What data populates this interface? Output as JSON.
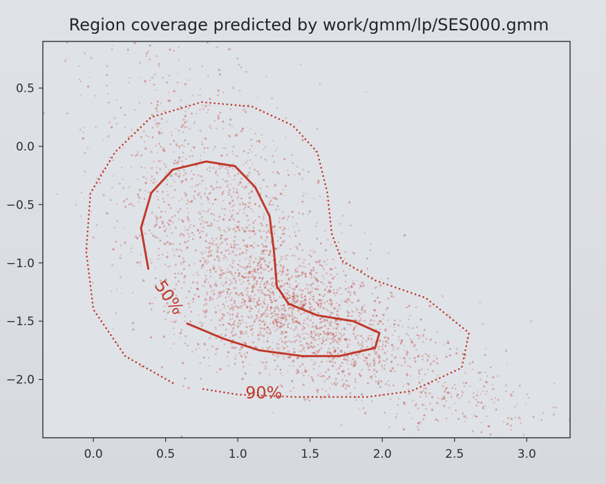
{
  "chart_data": {
    "type": "scatter",
    "title": "Region coverage predicted by work/gmm/lp/SES000.gmm",
    "xlabel": "",
    "ylabel": "",
    "xlim": [
      -0.35,
      3.3
    ],
    "ylim": [
      -2.5,
      0.9
    ],
    "xticks": [
      {
        "value": 0.0,
        "label": "0.0"
      },
      {
        "value": 0.5,
        "label": "0.5"
      },
      {
        "value": 1.0,
        "label": "1.0"
      },
      {
        "value": 1.5,
        "label": "1.5"
      },
      {
        "value": 2.0,
        "label": "2.0"
      },
      {
        "value": 2.5,
        "label": "2.5"
      },
      {
        "value": 3.0,
        "label": "3.0"
      }
    ],
    "yticks": [
      {
        "value": 0.5,
        "label": "0.5"
      },
      {
        "value": 0.0,
        "label": "0.0"
      },
      {
        "value": -0.5,
        "label": "−0.5"
      },
      {
        "value": -1.0,
        "label": "−1.0"
      },
      {
        "value": -1.5,
        "label": "−1.5"
      },
      {
        "value": -2.0,
        "label": "−2.0"
      }
    ],
    "grid": false,
    "scatter": {
      "color": "#c0392b",
      "approximate_point_count": 3000,
      "note_density_centers": [
        {
          "x": 0.9,
          "y": -0.8,
          "sx": 0.35,
          "sy": 0.45,
          "weight": 0.3
        },
        {
          "x": 1.3,
          "y": -1.35,
          "sx": 0.3,
          "sy": 0.25,
          "weight": 0.3
        },
        {
          "x": 1.8,
          "y": -1.75,
          "sx": 0.35,
          "sy": 0.2,
          "weight": 0.22
        },
        {
          "x": 0.55,
          "y": 0.1,
          "sx": 0.35,
          "sy": 0.45,
          "weight": 0.12
        },
        {
          "x": 2.5,
          "y": -2.2,
          "sx": 0.35,
          "sy": 0.15,
          "weight": 0.06
        }
      ]
    },
    "contours": [
      {
        "level_label": "50%",
        "style": "solid",
        "color": "#c0392b",
        "path": [
          [
            0.38,
            -1.05
          ],
          [
            0.33,
            -0.7
          ],
          [
            0.4,
            -0.4
          ],
          [
            0.55,
            -0.2
          ],
          [
            0.78,
            -0.13
          ],
          [
            0.98,
            -0.17
          ],
          [
            1.12,
            -0.35
          ],
          [
            1.22,
            -0.6
          ],
          [
            1.25,
            -0.9
          ],
          [
            1.27,
            -1.2
          ],
          [
            1.35,
            -1.35
          ],
          [
            1.55,
            -1.45
          ],
          [
            1.8,
            -1.5
          ],
          [
            1.98,
            -1.6
          ],
          [
            1.95,
            -1.73
          ],
          [
            1.7,
            -1.8
          ],
          [
            1.45,
            -1.8
          ],
          [
            1.15,
            -1.75
          ],
          [
            0.9,
            -1.65
          ],
          [
            0.65,
            -1.52
          ]
        ],
        "label_position": [
          0.52,
          -1.3
        ]
      },
      {
        "level_label": "90%",
        "style": "dotted",
        "color": "#c0392b",
        "path": [
          [
            0.55,
            -2.03
          ],
          [
            0.22,
            -1.8
          ],
          [
            0.0,
            -1.4
          ],
          [
            -0.05,
            -0.9
          ],
          [
            -0.02,
            -0.4
          ],
          [
            0.15,
            -0.05
          ],
          [
            0.4,
            0.25
          ],
          [
            0.75,
            0.38
          ],
          [
            1.1,
            0.34
          ],
          [
            1.38,
            0.18
          ],
          [
            1.55,
            -0.05
          ],
          [
            1.62,
            -0.4
          ],
          [
            1.65,
            -0.75
          ],
          [
            1.72,
            -0.98
          ],
          [
            1.95,
            -1.15
          ],
          [
            2.3,
            -1.3
          ],
          [
            2.6,
            -1.6
          ],
          [
            2.55,
            -1.9
          ],
          [
            2.2,
            -2.1
          ],
          [
            1.9,
            -2.15
          ],
          [
            1.4,
            -2.15
          ],
          [
            1.0,
            -2.13
          ],
          [
            0.75,
            -2.08
          ]
        ],
        "label_position": [
          1.18,
          -2.12
        ]
      }
    ]
  }
}
